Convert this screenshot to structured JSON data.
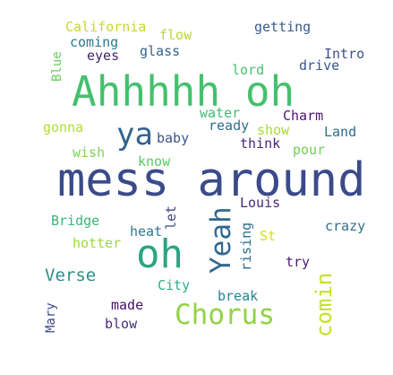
{
  "words": [
    {
      "key": "mess_around",
      "text": "mess around",
      "color": "#3b4a8a"
    },
    {
      "key": "ahhhhh_oh",
      "text": "Ahhhhh oh",
      "color": "#45c06e"
    },
    {
      "key": "oh",
      "text": "oh",
      "color": "#2aa582"
    },
    {
      "key": "chorus",
      "text": "Chorus",
      "color": "#8fd444"
    },
    {
      "key": "yeah",
      "text": "Yeah",
      "color": "#31688e"
    },
    {
      "key": "ya",
      "text": "ya",
      "color": "#33628d"
    },
    {
      "key": "comin",
      "text": "comin",
      "color": "#c6e02d"
    },
    {
      "key": "verse",
      "text": "Verse",
      "color": "#2a8f8a"
    },
    {
      "key": "california",
      "text": "California",
      "color": "#c8d82e"
    },
    {
      "key": "getting",
      "text": "getting",
      "color": "#3b5a8b"
    },
    {
      "key": "flow",
      "text": "flow",
      "color": "#bcd633"
    },
    {
      "key": "coming",
      "text": "coming",
      "color": "#2a7a8e"
    },
    {
      "key": "glass",
      "text": "glass",
      "color": "#32648e"
    },
    {
      "key": "eyes",
      "text": "eyes",
      "color": "#46246b"
    },
    {
      "key": "intro",
      "text": "Intro",
      "color": "#3d4e8a"
    },
    {
      "key": "blue",
      "text": "Blue",
      "color": "#6ccd5a"
    },
    {
      "key": "drive",
      "text": "drive",
      "color": "#3a5489"
    },
    {
      "key": "lord",
      "text": "lord",
      "color": "#47c16e"
    },
    {
      "key": "water",
      "text": "water",
      "color": "#3fbc73"
    },
    {
      "key": "charm",
      "text": "Charm",
      "color": "#4a1570"
    },
    {
      "key": "gonna",
      "text": "gonna",
      "color": "#b2dd2d"
    },
    {
      "key": "ready",
      "text": "ready",
      "color": "#2e6e8e"
    },
    {
      "key": "show",
      "text": "show",
      "color": "#a8db34"
    },
    {
      "key": "land",
      "text": "Land",
      "color": "#2f6b8e"
    },
    {
      "key": "baby",
      "text": "baby",
      "color": "#3a548c"
    },
    {
      "key": "think",
      "text": "think",
      "color": "#46287a"
    },
    {
      "key": "pour",
      "text": "pour",
      "color": "#6ece58"
    },
    {
      "key": "wish",
      "text": "wish",
      "color": "#7fd34e"
    },
    {
      "key": "know",
      "text": "know",
      "color": "#5ac864"
    },
    {
      "key": "let",
      "text": "let",
      "color": "#404688"
    },
    {
      "key": "louis",
      "text": "Louis",
      "color": "#482878"
    },
    {
      "key": "bridge",
      "text": "Bridge",
      "color": "#35b779"
    },
    {
      "key": "crazy",
      "text": "crazy",
      "color": "#2c728e"
    },
    {
      "key": "heat",
      "text": "heat",
      "color": "#29798e"
    },
    {
      "key": "st",
      "text": "St",
      "color": "#d0e11c"
    },
    {
      "key": "hotter",
      "text": "hotter",
      "color": "#9ad93c"
    },
    {
      "key": "rising",
      "text": "rising",
      "color": "#2d708e"
    },
    {
      "key": "try",
      "text": "try",
      "color": "#481f70"
    },
    {
      "key": "city",
      "text": "City",
      "color": "#2ab07f"
    },
    {
      "key": "mary",
      "text": "Mary",
      "color": "#3e4a89"
    },
    {
      "key": "made",
      "text": "made",
      "color": "#471365"
    },
    {
      "key": "break",
      "text": "break",
      "color": "#25838e"
    },
    {
      "key": "blow",
      "text": "blow",
      "color": "#472d7b"
    }
  ]
}
